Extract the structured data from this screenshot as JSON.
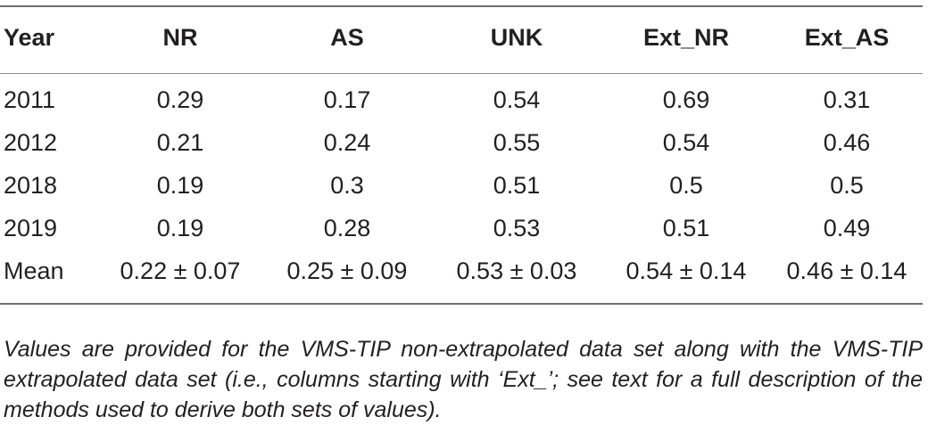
{
  "table": {
    "headers": [
      "Year",
      "NR",
      "AS",
      "UNK",
      "Ext_NR",
      "Ext_AS"
    ],
    "rows": [
      [
        "2011",
        "0.29",
        "0.17",
        "0.54",
        "0.69",
        "0.31"
      ],
      [
        "2012",
        "0.21",
        "0.24",
        "0.55",
        "0.54",
        "0.46"
      ],
      [
        "2018",
        "0.19",
        "0.3",
        "0.51",
        "0.5",
        "0.5"
      ],
      [
        "2019",
        "0.19",
        "0.28",
        "0.53",
        "0.51",
        "0.49"
      ],
      [
        "Mean",
        "0.22 ± 0.07",
        "0.25 ± 0.09",
        "0.53 ± 0.03",
        "0.54 ± 0.14",
        "0.46 ± 0.14"
      ]
    ]
  },
  "footnote": "Values are provided for the VMS-TIP non-extrapolated data set along with the VMS-TIP extrapolated data set (i.e., columns starting with ‘Ext_’; see text for a full description of the methods used to derive both sets of values)."
}
